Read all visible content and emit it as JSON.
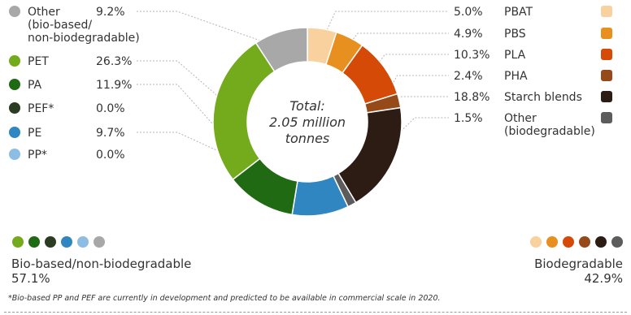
{
  "chart_data": {
    "type": "pie",
    "center_text": [
      "Total:",
      "2.05 million",
      "tonnes"
    ],
    "slices": [
      {
        "label": [
          "PBAT"
        ],
        "value": 5.0,
        "value_label": "5.0%",
        "color": "#f9d19f",
        "group": "biodegradable"
      },
      {
        "label": [
          "PBS"
        ],
        "value": 4.9,
        "value_label": "4.9%",
        "color": "#e8901f",
        "group": "biodegradable"
      },
      {
        "label": [
          "PLA"
        ],
        "value": 10.3,
        "value_label": "10.3%",
        "color": "#d44a06",
        "group": "biodegradable"
      },
      {
        "label": [
          "PHA"
        ],
        "value": 2.4,
        "value_label": "2.4%",
        "color": "#964a1a",
        "group": "biodegradable"
      },
      {
        "label": [
          "Starch blends"
        ],
        "value": 18.8,
        "value_label": "18.8%",
        "color": "#2c1c14",
        "group": "biodegradable"
      },
      {
        "label": [
          "Other",
          "(biodegradable)"
        ],
        "value": 1.5,
        "value_label": "1.5%",
        "color": "#5c5c5c",
        "group": "biodegradable"
      },
      {
        "label": [
          "PE"
        ],
        "value": 9.7,
        "value_label": "9.7%",
        "color": "#2f86c0",
        "group": "bio-based"
      },
      {
        "label": [
          "PP*"
        ],
        "value": 0.0,
        "value_label": "0.0%",
        "color": "#8dbde3",
        "group": "bio-based"
      },
      {
        "label": [
          "PA"
        ],
        "value": 11.9,
        "value_label": "11.9%",
        "color": "#1f6a12",
        "group": "bio-based"
      },
      {
        "label": [
          "PEF*"
        ],
        "value": 0.0,
        "value_label": "0.0%",
        "color": "#2b3c22",
        "group": "bio-based"
      },
      {
        "label": [
          "PET"
        ],
        "value": 26.3,
        "value_label": "26.3%",
        "color": "#74ab1c",
        "group": "bio-based"
      },
      {
        "label": [
          "Other",
          "(bio-based/",
          "non-biodegradable)"
        ],
        "value": 9.2,
        "value_label": "9.2%",
        "color": "#a8a8a8",
        "group": "bio-based"
      }
    ],
    "groups": {
      "bio_based": {
        "name": "Bio-based/non-biodegradable",
        "total": "57.1%",
        "dot_colors": [
          "#74ab1c",
          "#1f6a12",
          "#2b3c22",
          "#2f86c0",
          "#8dbde3",
          "#a8a8a8"
        ]
      },
      "biodegradable": {
        "name": "Biodegradable",
        "total": "42.9%",
        "dot_colors": [
          "#f9d19f",
          "#e8901f",
          "#d44a06",
          "#964a1a",
          "#2c1c14",
          "#5c5c5c"
        ]
      }
    }
  },
  "footnote": "*Bio-based PP and PEF are currently in development and predicted to be available in commercial scale in 2020."
}
